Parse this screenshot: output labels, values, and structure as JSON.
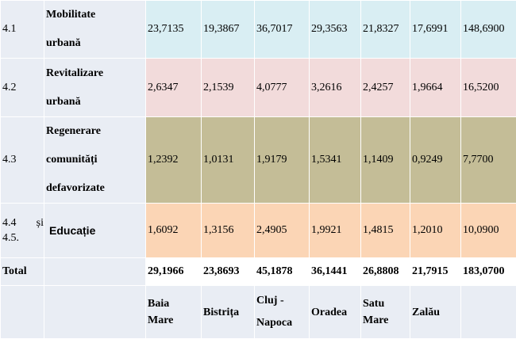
{
  "rows": [
    {
      "code": "4.1",
      "name_lines": [
        "Mobilitate",
        "urbană"
      ],
      "values": [
        "23,7135",
        "19,3867",
        "36,7017",
        "29,3563",
        "21,8327",
        "17,6991",
        "148,6900"
      ],
      "color": "#d9eef3"
    },
    {
      "code": "4.2",
      "name_lines": [
        "Revitalizare",
        "urbană"
      ],
      "values": [
        "2,6347",
        "2,1539",
        "4,0777",
        "3,2616",
        "2,4257",
        "1,9664",
        "16,5200"
      ],
      "color": "#f2dbdb"
    },
    {
      "code": "4.3",
      "name_lines": [
        "Regenerare",
        "comunități",
        "defavorizate"
      ],
      "values": [
        "1,2392",
        "1,0131",
        "1,9179",
        "1,5341",
        "1,1409",
        "0,9249",
        "7,7700"
      ],
      "color": "#c4bd97"
    },
    {
      "code_lines": [
        "4.4",
        "4.5."
      ],
      "code_suffix": "și",
      "name_lines": [
        "Educație"
      ],
      "values": [
        "1,6092",
        "1,3156",
        "2,4905",
        "1,9921",
        "1,4815",
        "1,2010",
        "10,0900"
      ],
      "color": "#fbd5b5"
    }
  ],
  "total": {
    "label": "Total",
    "values": [
      "29,1966",
      "23,8693",
      "45,1878",
      "36,1441",
      "26,8808",
      "21,7915",
      "183,0700"
    ]
  },
  "cities": [
    [
      "Baia",
      "Mare"
    ],
    [
      "Bistrița"
    ],
    [
      "Cluj -",
      "Napoca"
    ],
    [
      "Oradea"
    ],
    [
      "Satu",
      "Mare"
    ],
    [
      "Zalău"
    ],
    [
      ""
    ]
  ]
}
